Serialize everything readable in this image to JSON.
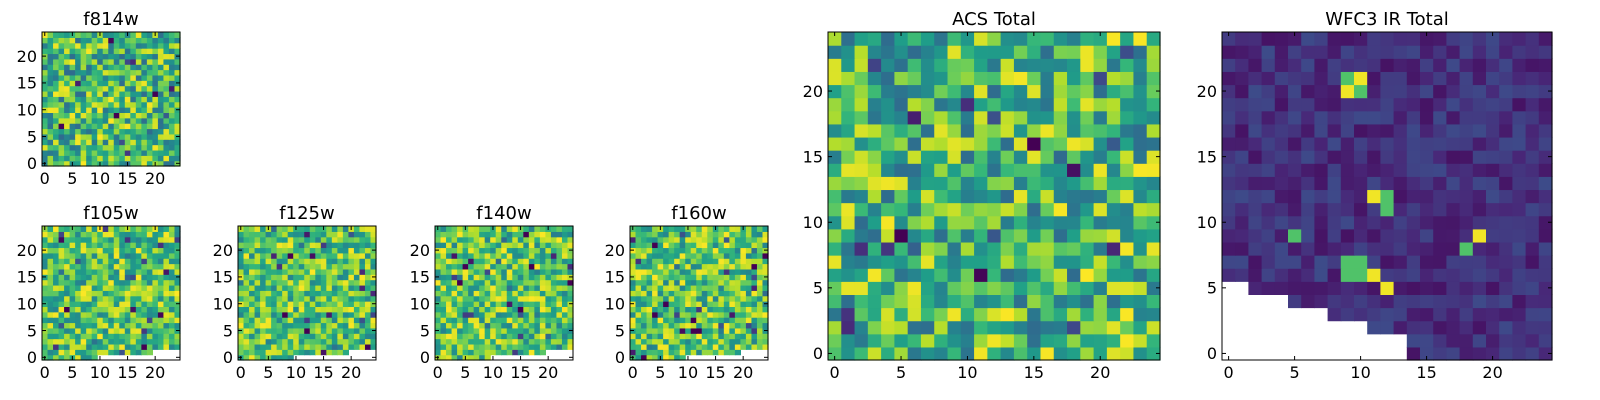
{
  "figure": {
    "background": "#ffffff"
  },
  "colormap": {
    "name": "viridis",
    "stops": [
      "#440154",
      "#482878",
      "#3e4989",
      "#31688e",
      "#26828e",
      "#1f9e89",
      "#35b779",
      "#6ece58",
      "#b5de2b",
      "#fde725"
    ]
  },
  "chart_data": [
    {
      "id": "f814w",
      "type": "heatmap",
      "title": "f814w",
      "grid_size": 25,
      "seed": 814,
      "style": "noise",
      "xticks": [
        0,
        5,
        10,
        15,
        20
      ],
      "yticks": [
        0,
        5,
        10,
        15,
        20
      ],
      "xlim": [
        0,
        25
      ],
      "ylim": [
        0,
        25
      ],
      "masked_mode": "none"
    },
    {
      "id": "f105w",
      "type": "heatmap",
      "title": "f105w",
      "grid_size": 25,
      "seed": 105,
      "style": "patchy",
      "xticks": [
        0,
        5,
        10,
        15,
        20
      ],
      "yticks": [
        0,
        5,
        10,
        15,
        20
      ],
      "xlim": [
        0,
        25
      ],
      "ylim": [
        0,
        25
      ],
      "masked_mode": "small",
      "masked_region": "bottom-right corner"
    },
    {
      "id": "f125w",
      "type": "heatmap",
      "title": "f125w",
      "grid_size": 25,
      "seed": 125,
      "style": "patchy",
      "xticks": [
        0,
        5,
        10,
        15,
        20
      ],
      "yticks": [
        0,
        5,
        10,
        15,
        20
      ],
      "xlim": [
        0,
        25
      ],
      "ylim": [
        0,
        25
      ],
      "masked_mode": "small",
      "masked_region": "bottom-right corner"
    },
    {
      "id": "f140w",
      "type": "heatmap",
      "title": "f140w",
      "grid_size": 25,
      "seed": 140,
      "style": "patchy",
      "xticks": [
        0,
        5,
        10,
        15,
        20
      ],
      "yticks": [
        0,
        5,
        10,
        15,
        20
      ],
      "xlim": [
        0,
        25
      ],
      "ylim": [
        0,
        25
      ],
      "masked_mode": "small",
      "masked_region": "bottom-right corner"
    },
    {
      "id": "f160w",
      "type": "heatmap",
      "title": "f160w",
      "grid_size": 25,
      "seed": 160,
      "style": "patchy",
      "xticks": [
        0,
        5,
        10,
        15,
        20
      ],
      "yticks": [
        0,
        5,
        10,
        15,
        20
      ],
      "xlim": [
        0,
        25
      ],
      "ylim": [
        0,
        25
      ],
      "masked_mode": "small",
      "masked_region": "bottom-right corner"
    },
    {
      "id": "acs_total",
      "type": "heatmap",
      "title": "ACS Total",
      "grid_size": 25,
      "seed": 7,
      "style": "noise",
      "xticks": [
        0,
        5,
        10,
        15,
        20
      ],
      "yticks": [
        0,
        5,
        10,
        15,
        20
      ],
      "xlim": [
        0,
        25
      ],
      "ylim": [
        0,
        25
      ],
      "masked_mode": "none"
    },
    {
      "id": "wfc3_ir_total",
      "type": "heatmap",
      "title": "WFC3 IR Total",
      "grid_size": 25,
      "seed": 3,
      "style": "sparse",
      "bright_spots": [
        [
          9,
          20
        ],
        [
          10,
          20
        ],
        [
          9,
          21
        ],
        [
          10,
          21
        ],
        [
          12,
          11
        ],
        [
          12,
          12
        ],
        [
          11,
          12
        ],
        [
          5,
          9
        ],
        [
          18,
          8
        ],
        [
          19,
          9
        ],
        [
          9,
          6
        ],
        [
          10,
          6
        ],
        [
          11,
          6
        ],
        [
          9,
          7
        ],
        [
          10,
          7
        ],
        [
          12,
          5
        ]
      ],
      "xticks": [
        0,
        5,
        10,
        15,
        20
      ],
      "yticks": [
        0,
        5,
        10,
        15,
        20
      ],
      "xlim": [
        0,
        25
      ],
      "ylim": [
        0,
        25
      ],
      "masked_mode": "staircase",
      "masked_region": "bottom-left staircase"
    }
  ]
}
